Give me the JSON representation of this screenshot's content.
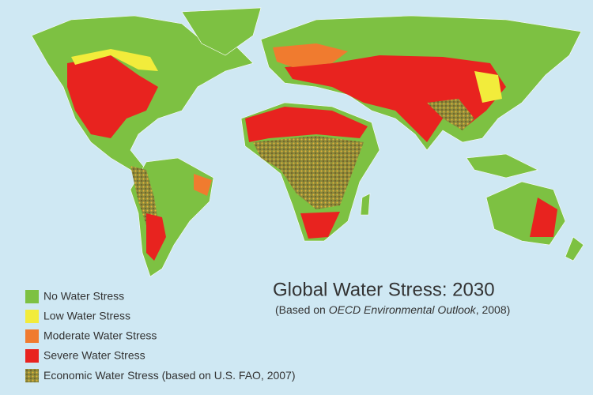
{
  "title": "Global Water Stress: 2030",
  "subtitle": {
    "before": "(Based on ",
    "italic": "OECD Environmental Outlook",
    "after": ", 2008)"
  },
  "legend": [
    {
      "label": "No Water Stress"
    },
    {
      "label": "Low Water Stress"
    },
    {
      "label": "Moderate Water Stress"
    },
    {
      "label": "Severe Water Stress"
    },
    {
      "label": "Economic Water Stress",
      "note": " (based on U.S. FAO, 2007)"
    }
  ]
}
